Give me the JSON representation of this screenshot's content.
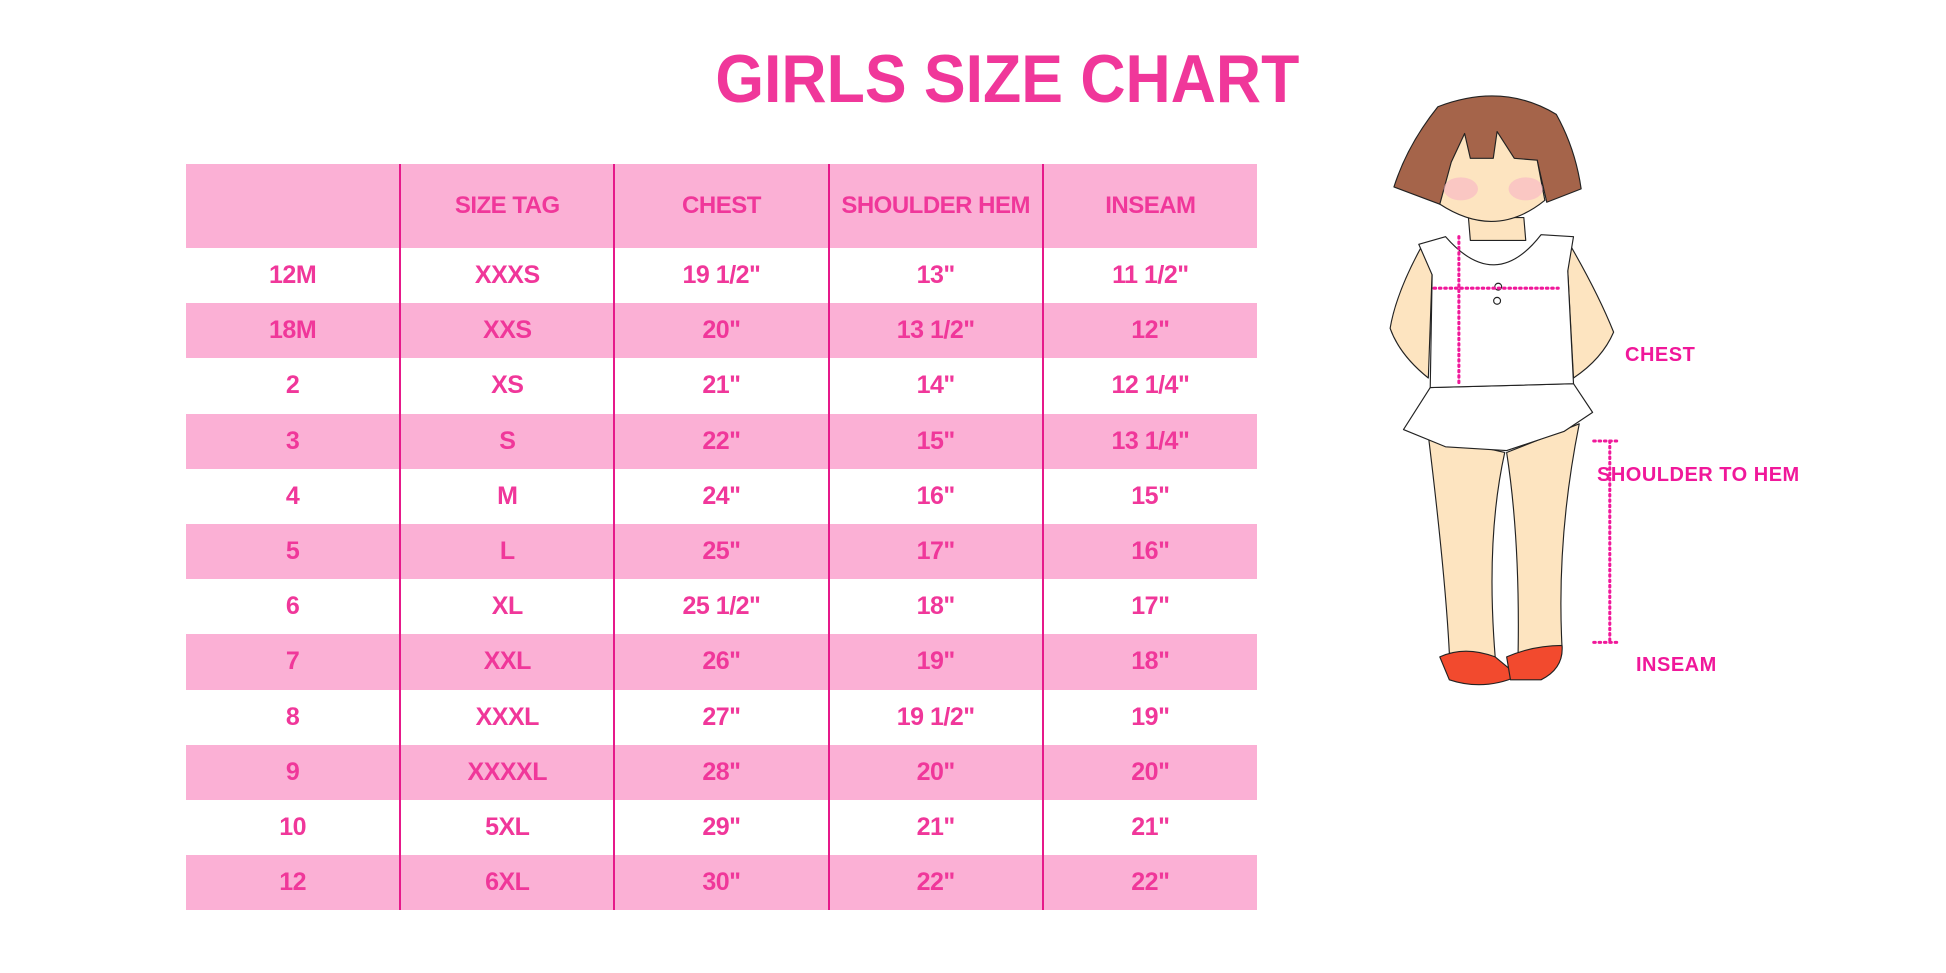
{
  "title": "GIRLS SIZE CHART",
  "colors": {
    "accent": "#f0379a",
    "row_pink": "#fbb0d5",
    "divider": "#e6198a"
  },
  "table": {
    "headers": [
      "",
      "SIZE TAG",
      "CHEST",
      "SHOULDER HEM",
      "INSEAM"
    ],
    "rows": [
      [
        "12M",
        "XXXS",
        "19 1/2\"",
        "13\"",
        "11 1/2\""
      ],
      [
        "18M",
        "XXS",
        "20\"",
        "13 1/2\"",
        "12\""
      ],
      [
        "2",
        "XS",
        "21\"",
        "14\"",
        "12 1/4\""
      ],
      [
        "3",
        "S",
        "22\"",
        "15\"",
        "13 1/4\""
      ],
      [
        "4",
        "M",
        "24\"",
        "16\"",
        "15\""
      ],
      [
        "5",
        "L",
        "25\"",
        "17\"",
        "16\""
      ],
      [
        "6",
        "XL",
        "25 1/2\"",
        "18\"",
        "17\""
      ],
      [
        "7",
        "XXL",
        "26\"",
        "19\"",
        "18\""
      ],
      [
        "8",
        "XXXL",
        "27\"",
        "19 1/2\"",
        "19\""
      ],
      [
        "9",
        "XXXXL",
        "28\"",
        "20\"",
        "20\""
      ],
      [
        "10",
        "5XL",
        "29\"",
        "21\"",
        "21\""
      ],
      [
        "12",
        "6XL",
        "30\"",
        "22\"",
        "22\""
      ]
    ]
  },
  "figure": {
    "labels": {
      "chest": "CHEST",
      "shoulder": "SHOULDER TO HEM",
      "inseam": "INSEAM"
    }
  }
}
